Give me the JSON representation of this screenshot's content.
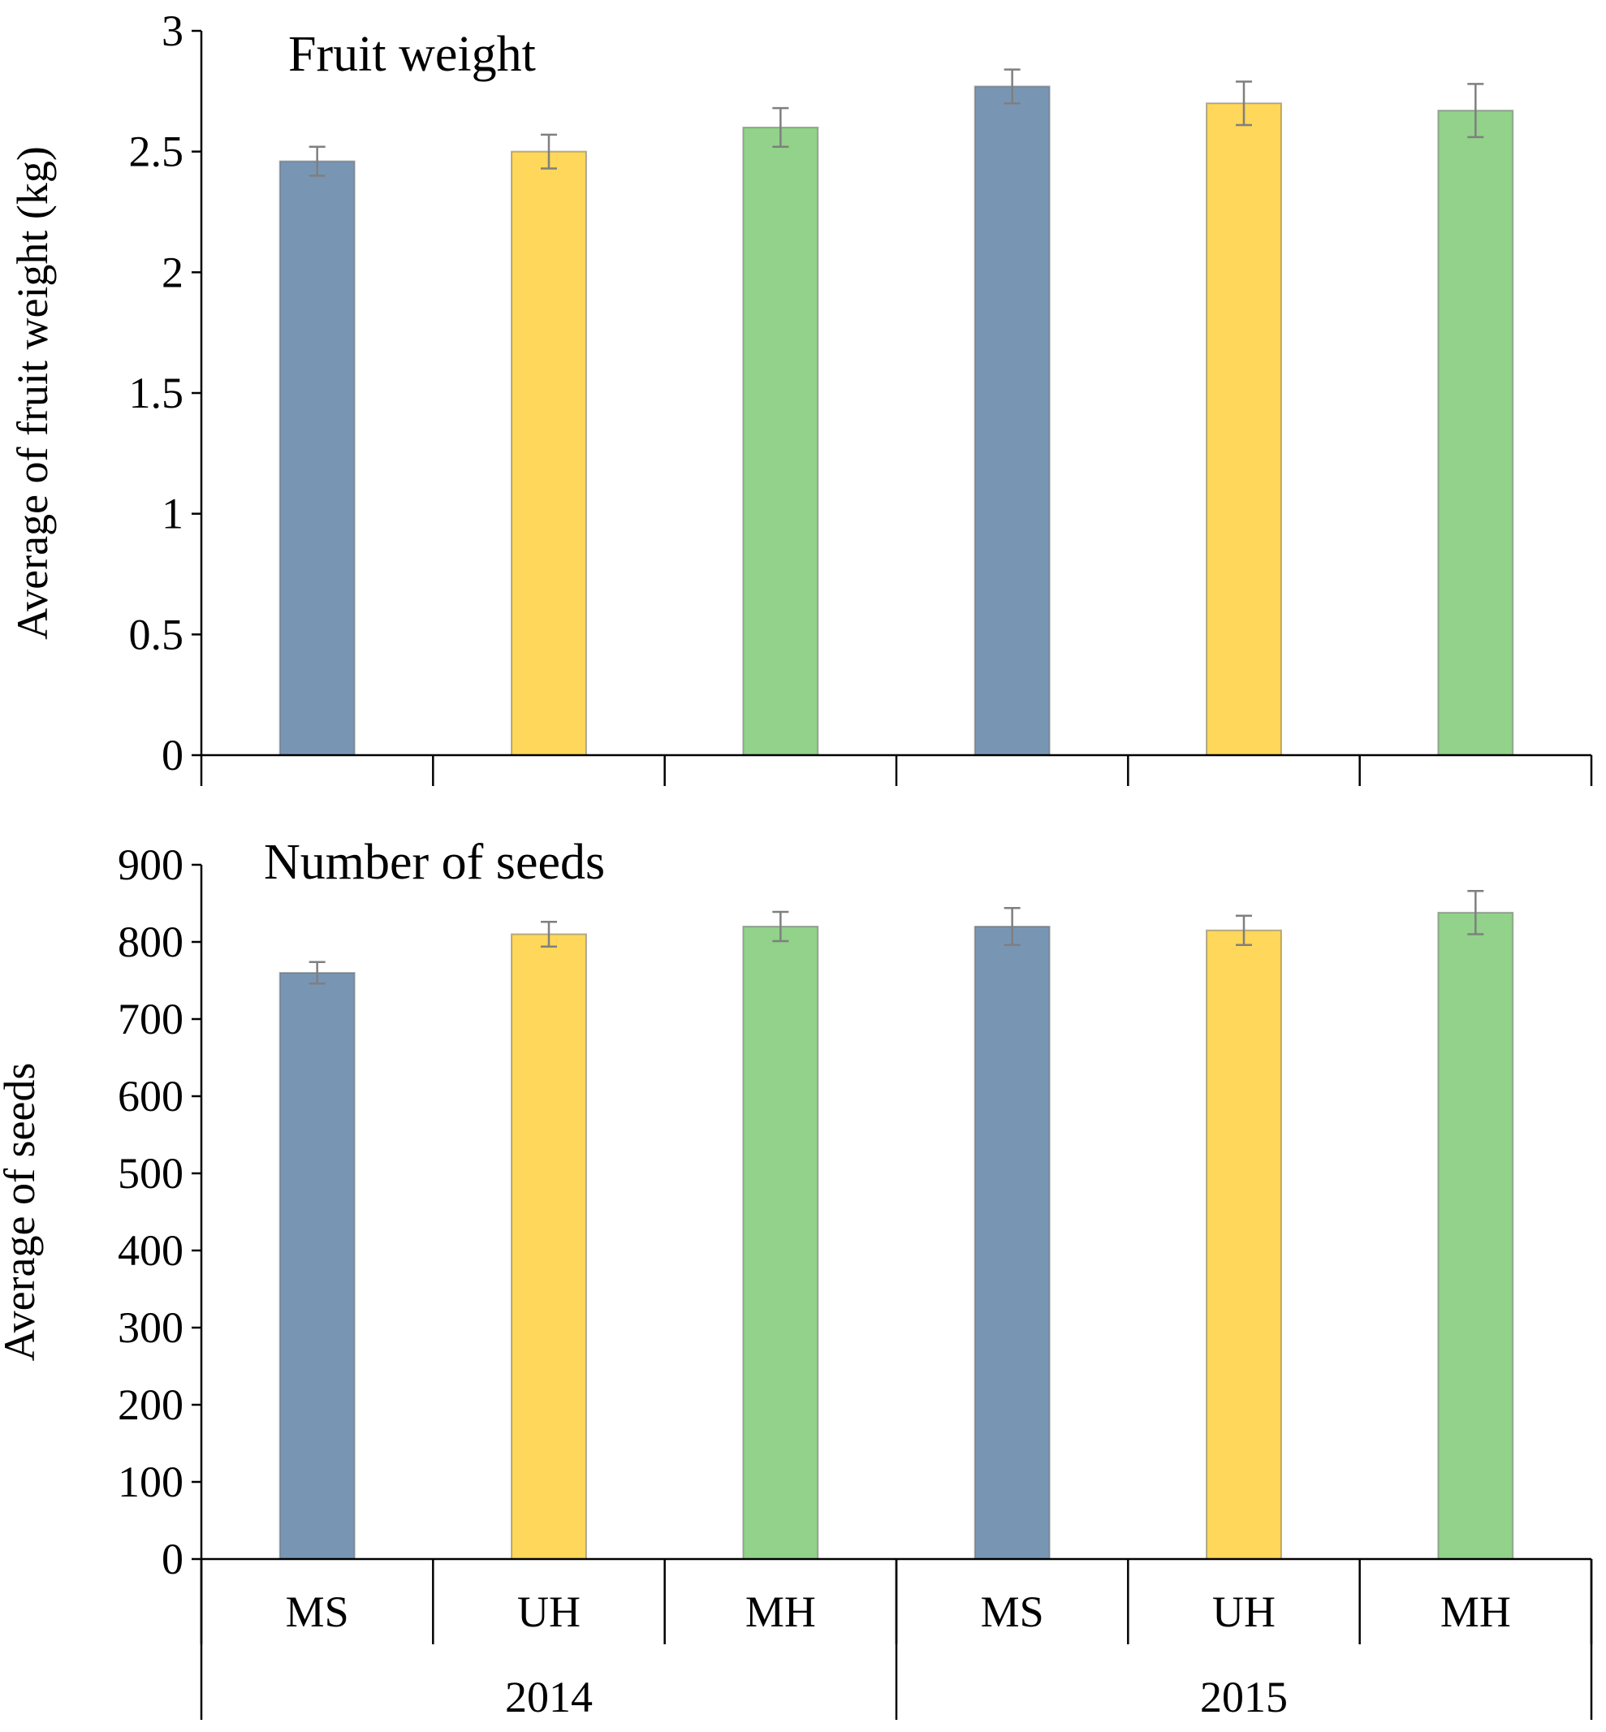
{
  "colors": {
    "MS": "#7896b4",
    "UH": "#ffd75a",
    "MH": "#92d28a",
    "axis": "#000000",
    "error": "#7f7f7f"
  },
  "chart_data": [
    {
      "type": "bar",
      "title": "Fruit weight",
      "xlabel": "",
      "ylabel": "Average of fruit weight (kg)",
      "categories": [
        "MS",
        "UH",
        "MH",
        "MS",
        "UH",
        "MH"
      ],
      "groups": [
        {
          "label": "2014",
          "categories": [
            "MS",
            "UH",
            "MH"
          ]
        },
        {
          "label": "2015",
          "categories": [
            "MS",
            "UH",
            "MH"
          ]
        }
      ],
      "values": [
        2.46,
        2.5,
        2.6,
        2.77,
        2.7,
        2.67
      ],
      "errors": [
        0.06,
        0.07,
        0.08,
        0.07,
        0.09,
        0.11
      ],
      "ylim": [
        0,
        3
      ],
      "yticks": [
        0,
        0.5,
        1,
        1.5,
        2,
        2.5,
        3
      ],
      "ytick_labels": [
        "0",
        "0.5",
        "1",
        "1.5",
        "2",
        "2.5",
        "3"
      ],
      "grid": false
    },
    {
      "type": "bar",
      "title": "Number of seeds",
      "xlabel": "",
      "ylabel": "Average of seeds",
      "categories": [
        "MS",
        "UH",
        "MH",
        "MS",
        "UH",
        "MH"
      ],
      "groups": [
        {
          "label": "2014",
          "categories": [
            "MS",
            "UH",
            "MH"
          ]
        },
        {
          "label": "2015",
          "categories": [
            "MS",
            "UH",
            "MH"
          ]
        }
      ],
      "values": [
        760,
        810,
        820,
        820,
        815,
        838
      ],
      "errors": [
        14,
        16,
        19,
        24,
        19,
        28
      ],
      "ylim": [
        0,
        900
      ],
      "yticks": [
        0,
        100,
        200,
        300,
        400,
        500,
        600,
        700,
        800,
        900
      ],
      "ytick_labels": [
        "0",
        "100",
        "200",
        "300",
        "400",
        "500",
        "600",
        "700",
        "800",
        "900"
      ],
      "grid": false
    }
  ]
}
